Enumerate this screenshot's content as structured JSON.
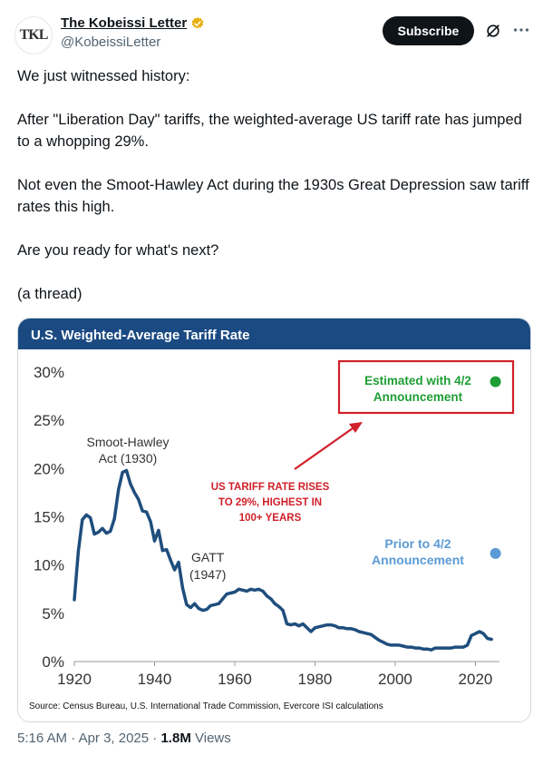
{
  "author": {
    "display_name": "The Kobeissi Letter",
    "handle": "@KobeissiLetter",
    "avatar_text": "TKL",
    "verified_color": "#e8b00f"
  },
  "actions": {
    "subscribe_label": "Subscribe"
  },
  "tweet": {
    "paragraphs": [
      "We just witnessed history:",
      "After \"Liberation Day\" tariffs, the weighted-average US tariff rate has jumped to a whopping 29%.",
      "Not even the Smoot-Hawley Act during the 1930s Great Depression saw tariff rates this high.",
      "Are you ready for what's next?",
      "(a thread)"
    ]
  },
  "meta": {
    "time": "5:16 AM",
    "date": "Apr 3, 2025",
    "separator": "·",
    "views_count": "1.8M",
    "views_label": "Views"
  },
  "chart_data": {
    "type": "line",
    "title": "U.S. Weighted-Average Tariff Rate",
    "xlabel": "",
    "ylabel": "",
    "source": "Source: Census Bureau, U.S. International Trade Commission, Evercore ISI calculations",
    "xlim": [
      1920,
      2026
    ],
    "ylim": [
      0,
      30
    ],
    "x_ticks": [
      1920,
      1940,
      1960,
      1980,
      2000,
      2020
    ],
    "y_ticks": [
      0,
      5,
      10,
      15,
      20,
      25,
      30
    ],
    "y_tick_labels": [
      "0%",
      "5%",
      "10%",
      "15%",
      "20%",
      "25%",
      "30%"
    ],
    "grid": false,
    "colors": {
      "header": "#1b4a82",
      "line": "#1f4e7d",
      "estimated": "#1e9e35",
      "prior": "#5b9bd5",
      "callout": "#d0202a"
    },
    "series": [
      {
        "x": [
          1920,
          1921,
          1922,
          1923,
          1924,
          1925,
          1926,
          1927,
          1928,
          1929,
          1930,
          1931,
          1932,
          1933,
          1934,
          1935,
          1936,
          1937,
          1938,
          1939,
          1940,
          1941,
          1942,
          1943,
          1944,
          1945,
          1946,
          1947,
          1948,
          1949,
          1950,
          1951,
          1952,
          1953,
          1954,
          1955,
          1956,
          1957,
          1958,
          1959,
          1960,
          1961,
          1962,
          1963,
          1964,
          1965,
          1966,
          1967,
          1968,
          1969,
          1970,
          1971,
          1972,
          1973,
          1974,
          1975,
          1976,
          1977,
          1978,
          1979,
          1980,
          1981,
          1982,
          1983,
          1984,
          1985,
          1986,
          1987,
          1988,
          1989,
          1990,
          1991,
          1992,
          1993,
          1994,
          1995,
          1996,
          1997,
          1998,
          1999,
          2000,
          2001,
          2002,
          2003,
          2004,
          2005,
          2006,
          2007,
          2008,
          2009,
          2010,
          2011,
          2012,
          2013,
          2014,
          2015,
          2016,
          2017,
          2018,
          2019,
          2020,
          2021,
          2022,
          2023,
          2024
        ],
        "values": [
          6.4,
          11.4,
          14.7,
          15.2,
          14.9,
          13.2,
          13.4,
          13.8,
          13.3,
          13.5,
          14.8,
          17.8,
          19.6,
          19.8,
          18.4,
          17.5,
          16.8,
          15.6,
          15.5,
          14.5,
          12.5,
          13.6,
          11.5,
          11.6,
          10.5,
          9.5,
          10.3,
          7.6,
          5.9,
          5.6,
          6.0,
          5.5,
          5.3,
          5.4,
          5.8,
          5.9,
          6.0,
          6.5,
          7.0,
          7.1,
          7.2,
          7.5,
          7.4,
          7.3,
          7.5,
          7.4,
          7.5,
          7.3,
          6.8,
          6.5,
          6.0,
          5.7,
          5.3,
          3.9,
          3.8,
          3.9,
          3.7,
          3.9,
          3.5,
          3.1,
          3.5,
          3.6,
          3.7,
          3.8,
          3.8,
          3.7,
          3.5,
          3.5,
          3.4,
          3.4,
          3.3,
          3.1,
          3.0,
          2.9,
          2.8,
          2.5,
          2.2,
          2.0,
          1.8,
          1.7,
          1.7,
          1.7,
          1.6,
          1.5,
          1.5,
          1.4,
          1.4,
          1.3,
          1.3,
          1.2,
          1.4,
          1.4,
          1.4,
          1.4,
          1.4,
          1.5,
          1.5,
          1.5,
          1.7,
          2.7,
          2.9,
          3.1,
          2.9,
          2.4,
          2.3
        ]
      }
    ],
    "points": [
      {
        "label": "Estimated with 4/2 Announcement",
        "x": 2025,
        "y": 29
      },
      {
        "label": "Prior to 4/2 Announcement",
        "x": 2025,
        "y": 11.2
      }
    ],
    "annotations": {
      "smoot_line1": "Smoot-Hawley",
      "smoot_line2": "Act (1930)",
      "gatt_line1": "GATT",
      "gatt_line2": "(1947)",
      "callout_line1": "US TARIFF RATE RISES",
      "callout_line2": "TO 29%, HIGHEST IN",
      "callout_line3": "100+ YEARS",
      "estimated_line1": "Estimated with 4/2",
      "estimated_line2": "Announcement",
      "prior_line1": "Prior to 4/2",
      "prior_line2": "Announcement"
    }
  }
}
